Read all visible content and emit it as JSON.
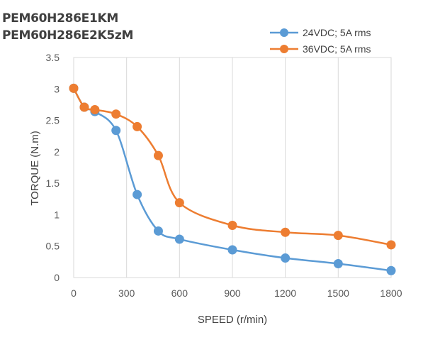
{
  "header": {
    "title_line1": "PEM60H286E1KM",
    "title_line2": "PEM60H286E2K5zM"
  },
  "chart_data": {
    "type": "line",
    "smooth": true,
    "xlabel": "SPEED (r/min)",
    "ylabel": "TORQUE (N.m)",
    "x_ticks": [
      "0",
      "300",
      "600",
      "900",
      "1200",
      "1500",
      "1800"
    ],
    "y_ticks": [
      "0",
      "0.5",
      "1",
      "1.5",
      "2",
      "2.5",
      "3",
      "3.5"
    ],
    "xlim": [
      0,
      1800
    ],
    "ylim": [
      0,
      3.5
    ],
    "x_grid": true,
    "y_grid": false,
    "legend_position": "top-right",
    "series": [
      {
        "name": "24VDC; 5A rms",
        "color": "#5b9bd5",
        "x": [
          0,
          60,
          120,
          240,
          360,
          480,
          600,
          900,
          1200,
          1500,
          1800
        ],
        "y": [
          3.01,
          2.71,
          2.64,
          2.34,
          1.32,
          0.74,
          0.61,
          0.44,
          0.31,
          0.22,
          0.11
        ]
      },
      {
        "name": "36VDC; 5A rms",
        "color": "#ed7d31",
        "x": [
          0,
          60,
          120,
          240,
          360,
          480,
          600,
          900,
          1200,
          1500,
          1800
        ],
        "y": [
          3.01,
          2.71,
          2.67,
          2.6,
          2.4,
          1.94,
          1.19,
          0.83,
          0.72,
          0.67,
          0.52
        ]
      }
    ]
  }
}
